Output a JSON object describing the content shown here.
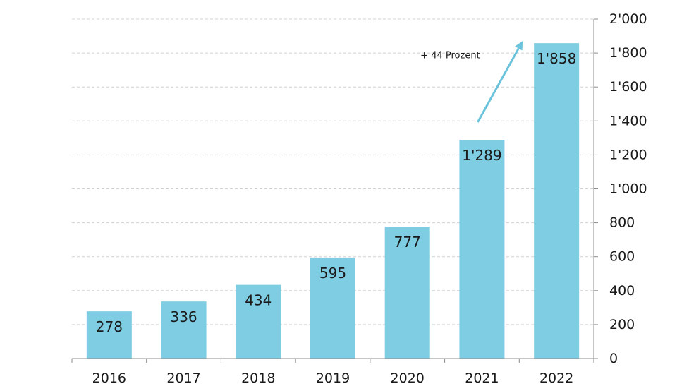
{
  "chart_data": {
    "type": "bar",
    "categories": [
      "2016",
      "2017",
      "2018",
      "2019",
      "2020",
      "2021",
      "2022"
    ],
    "values": [
      278,
      336,
      434,
      595,
      777,
      1289,
      1858
    ],
    "value_labels": [
      "278",
      "336",
      "434",
      "595",
      "777",
      "1'289",
      "1'858"
    ],
    "y_ticks": [
      0,
      200,
      400,
      600,
      800,
      1000,
      1200,
      1400,
      1600,
      1800,
      2000
    ],
    "y_tick_labels": [
      "0",
      "200",
      "400",
      "600",
      "800",
      "1'000",
      "1'200",
      "1'400",
      "1'600",
      "1'800",
      "2'000"
    ],
    "ylim": [
      0,
      2000
    ],
    "y_axis_side": "right",
    "grid": true,
    "grid_style": "dashed",
    "legend": "none",
    "title": "",
    "xlabel": "",
    "ylabel": "",
    "annotation": {
      "text": "+ 44 Prozent",
      "from_category": "2021",
      "to_category": "2022"
    },
    "colors": {
      "bar": "#7ecde2",
      "grid": "#d0d0d0",
      "axis": "#8c8c8c",
      "arrow": "#6cc3dc"
    }
  }
}
